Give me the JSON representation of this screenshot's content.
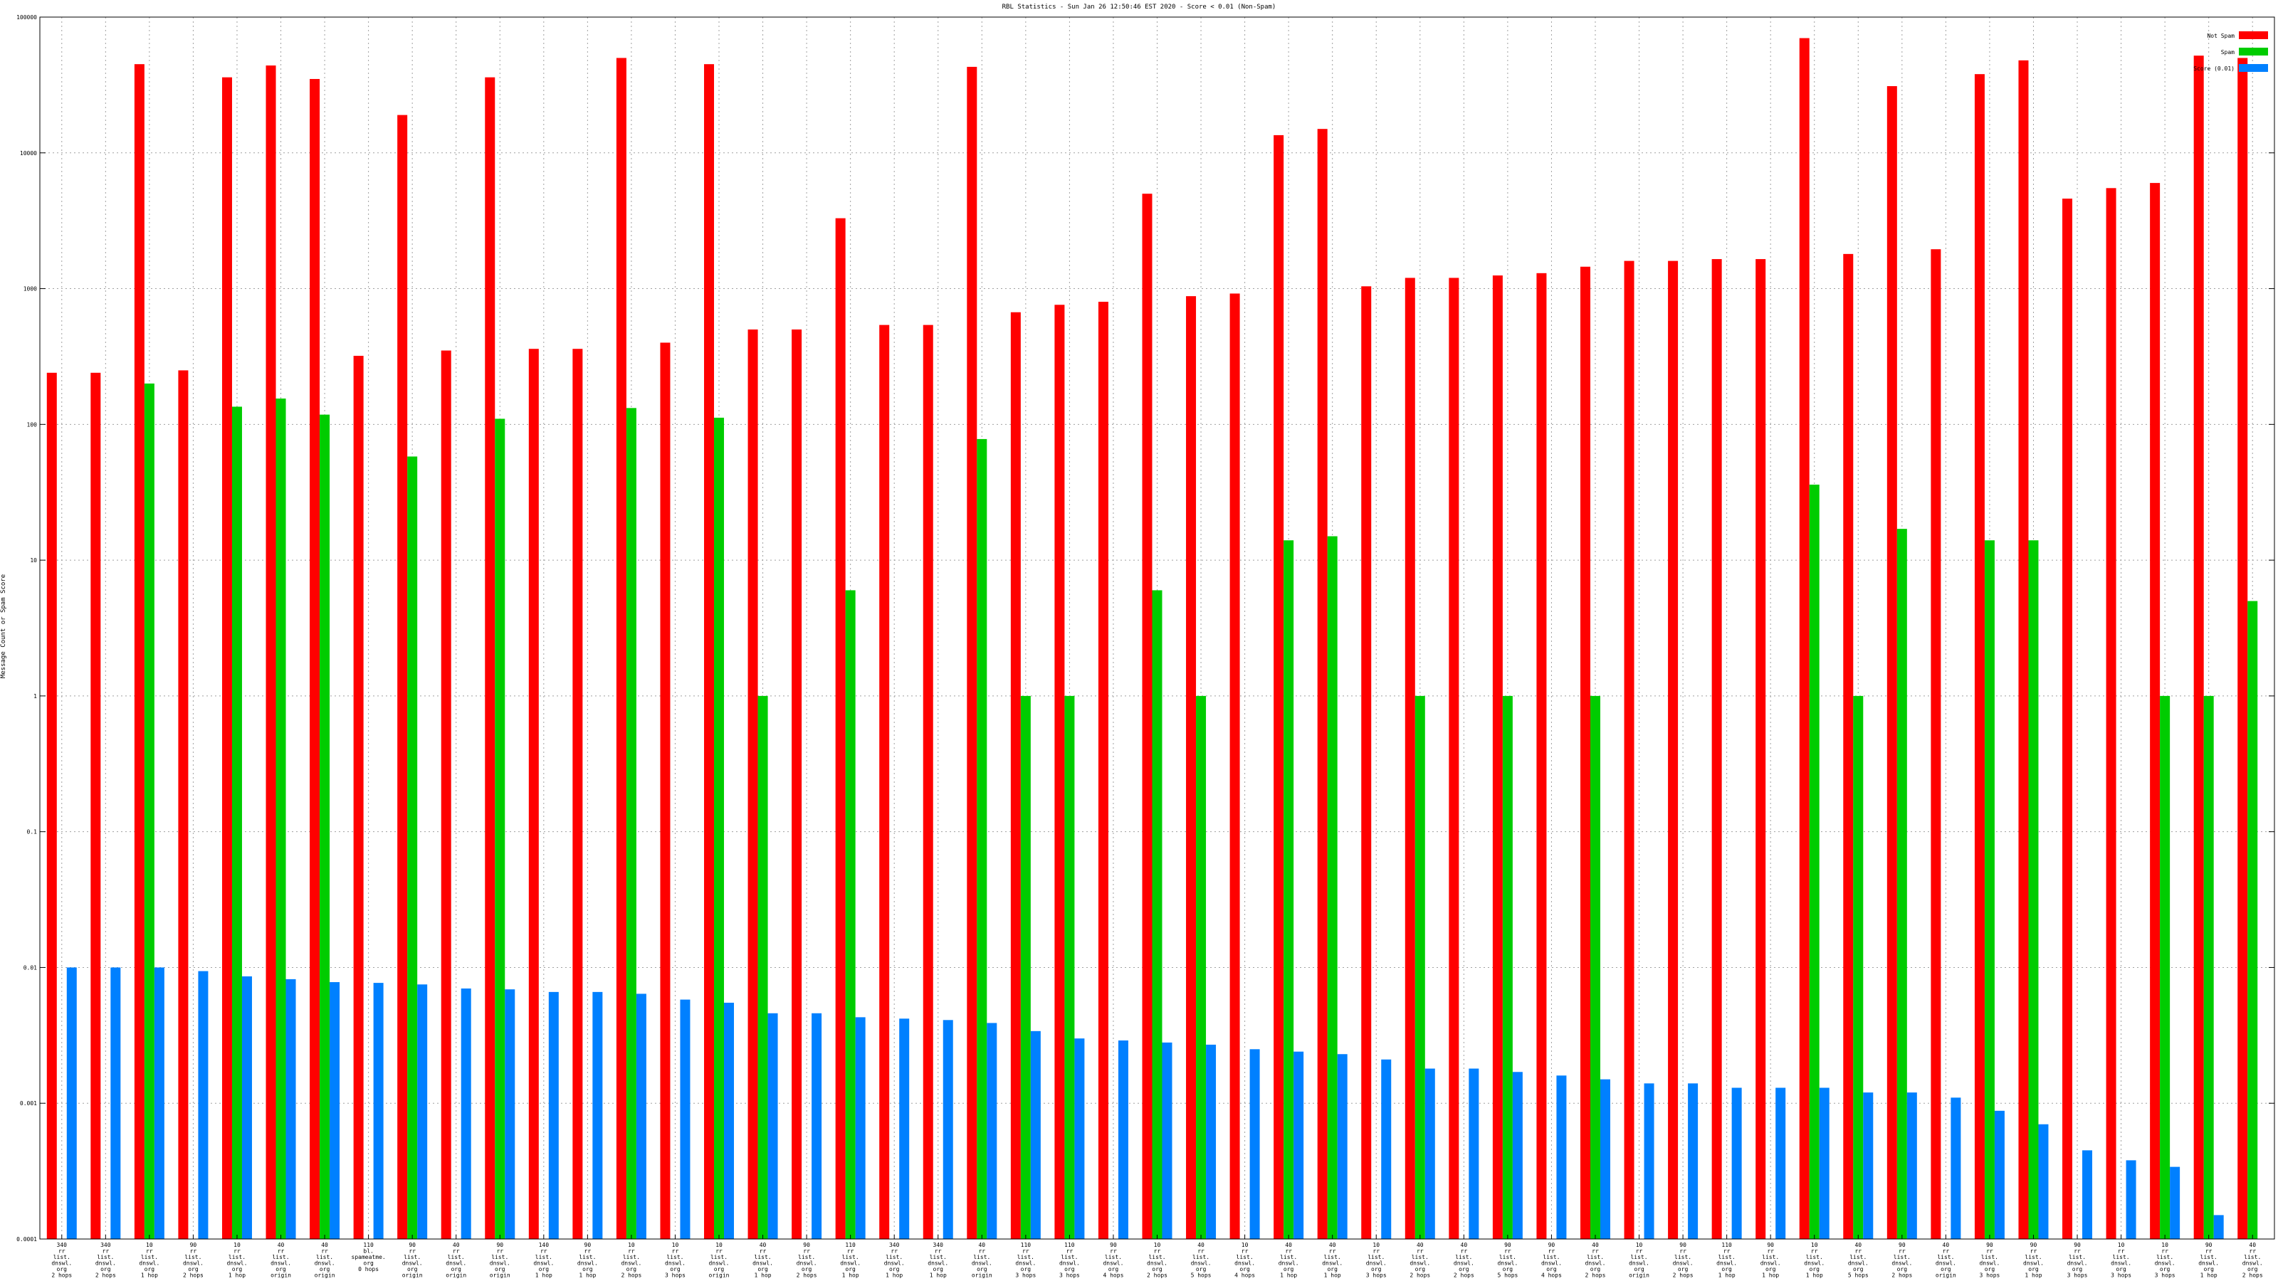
{
  "chart_data": {
    "type": "bar",
    "title": "RBL Statistics - Sun Jan 26 12:50:46 EST 2020 - Score < 0.01 (Non-Spam)",
    "ylabel": "Message Count or Spam Score",
    "yscale": "log",
    "ylim": [
      0.0001,
      100000
    ],
    "yticks": [
      "0.0001",
      "0.001",
      "0.01",
      "0.1",
      "1",
      "10",
      "100",
      "1000",
      "10000",
      "100000"
    ],
    "grid": true,
    "legend_position": "top-right",
    "categories": [
      [
        "340",
        "rr",
        "list.",
        "dnswl.",
        "org",
        "2 hops"
      ],
      [
        "340",
        "rr",
        "list.",
        "dnswl.",
        "org",
        "2 hops"
      ],
      [
        "10",
        "rr",
        "list.",
        "dnswl.",
        "org",
        "1 hop"
      ],
      [
        "90",
        "rr",
        "list.",
        "dnswl.",
        "org",
        "2 hops"
      ],
      [
        "10",
        "rr",
        "list.",
        "dnswl.",
        "org",
        "1 hop"
      ],
      [
        "40",
        "rr",
        "list.",
        "dnswl.",
        "org",
        "origin"
      ],
      [
        "40",
        "rr",
        "list.",
        "dnswl.",
        "org",
        "origin"
      ],
      [
        "110",
        "bl.",
        "spameatme.",
        "org",
        "0 hops"
      ],
      [
        "90",
        "rr",
        "list.",
        "dnswl.",
        "org",
        "origin"
      ],
      [
        "40",
        "rr",
        "list.",
        "dnswl.",
        "org",
        "origin"
      ],
      [
        "90",
        "rr",
        "list.",
        "dnswl.",
        "org",
        "origin"
      ],
      [
        "140",
        "rr",
        "list.",
        "dnswl.",
        "org",
        "1 hop"
      ],
      [
        "90",
        "rr",
        "list.",
        "dnswl.",
        "org",
        "1 hop"
      ],
      [
        "10",
        "rr",
        "list.",
        "dnswl.",
        "org",
        "2 hops"
      ],
      [
        "10",
        "rr",
        "list.",
        "dnswl.",
        "org",
        "3 hops"
      ],
      [
        "10",
        "rr",
        "list.",
        "dnswl.",
        "org",
        "origin"
      ],
      [
        "40",
        "rr",
        "list.",
        "dnswl.",
        "org",
        "1 hop"
      ],
      [
        "90",
        "rr",
        "list.",
        "dnswl.",
        "org",
        "2 hops"
      ],
      [
        "110",
        "rr",
        "list.",
        "dnswl.",
        "org",
        "1 hop"
      ],
      [
        "340",
        "rr",
        "list.",
        "dnswl.",
        "org",
        "1 hop"
      ],
      [
        "340",
        "rr",
        "list.",
        "dnswl.",
        "org",
        "1 hop"
      ],
      [
        "40",
        "rr",
        "list.",
        "dnswl.",
        "org",
        "origin"
      ],
      [
        "110",
        "rr",
        "list.",
        "dnswl.",
        "org",
        "3 hops"
      ],
      [
        "110",
        "rr",
        "list.",
        "dnswl.",
        "org",
        "3 hops"
      ],
      [
        "90",
        "rr",
        "list.",
        "dnswl.",
        "org",
        "4 hops"
      ],
      [
        "10",
        "rr",
        "list.",
        "dnswl.",
        "org",
        "2 hops"
      ],
      [
        "40",
        "rr",
        "list.",
        "dnswl.",
        "org",
        "5 hops"
      ],
      [
        "10",
        "rr",
        "list.",
        "dnswl.",
        "org",
        "4 hops"
      ],
      [
        "40",
        "rr",
        "list.",
        "dnswl.",
        "org",
        "1 hop"
      ],
      [
        "40",
        "rr",
        "list.",
        "dnswl.",
        "org",
        "1 hop"
      ],
      [
        "10",
        "rr",
        "list.",
        "dnswl.",
        "org",
        "3 hops"
      ],
      [
        "40",
        "rr",
        "list.",
        "dnswl.",
        "org",
        "2 hops"
      ],
      [
        "40",
        "rr",
        "list.",
        "dnswl.",
        "org",
        "2 hops"
      ],
      [
        "90",
        "rr",
        "list.",
        "dnswl.",
        "org",
        "5 hops"
      ],
      [
        "90",
        "rr",
        "list.",
        "dnswl.",
        "org",
        "4 hops"
      ],
      [
        "40",
        "rr",
        "list.",
        "dnswl.",
        "org",
        "2 hops"
      ],
      [
        "10",
        "rr",
        "list.",
        "dnswl.",
        "org",
        "origin"
      ],
      [
        "90",
        "rr",
        "list.",
        "dnswl.",
        "org",
        "2 hops"
      ],
      [
        "110",
        "rr",
        "list.",
        "dnswl.",
        "org",
        "1 hop"
      ],
      [
        "90",
        "rr",
        "list.",
        "dnswl.",
        "org",
        "1 hop"
      ],
      [
        "10",
        "rr",
        "list.",
        "dnswl.",
        "org",
        "1 hop"
      ],
      [
        "40",
        "rr",
        "list.",
        "dnswl.",
        "org",
        "5 hops"
      ],
      [
        "90",
        "rr",
        "list.",
        "dnswl.",
        "org",
        "2 hops"
      ],
      [
        "40",
        "rr",
        "list.",
        "dnswl.",
        "org",
        "origin"
      ],
      [
        "90",
        "rr",
        "list.",
        "dnswl.",
        "org",
        "3 hops"
      ],
      [
        "90",
        "rr",
        "list.",
        "dnswl.",
        "org",
        "1 hop"
      ],
      [
        "90",
        "rr",
        "list.",
        "dnswl.",
        "org",
        "3 hops"
      ],
      [
        "10",
        "rr",
        "list.",
        "dnswl.",
        "org",
        "3 hops"
      ],
      [
        "10",
        "rr",
        "list.",
        "dnswl.",
        "org",
        "3 hops"
      ],
      [
        "90",
        "rr",
        "list.",
        "dnswl.",
        "org",
        "1 hop"
      ],
      [
        "40",
        "rr",
        "list.",
        "dnswl.",
        "org",
        "2 hops"
      ]
    ],
    "series": [
      {
        "name": "Not Spam",
        "color": "#ff0000",
        "values": [
          240,
          240,
          45000,
          250,
          36000,
          44000,
          35000,
          320,
          19000,
          350,
          36000,
          360,
          360,
          50000,
          400,
          45000,
          500,
          500,
          3300,
          540,
          540,
          43000,
          670,
          760,
          800,
          5000,
          880,
          920,
          13500,
          15000,
          1040,
          1200,
          1200,
          1250,
          1300,
          1450,
          1600,
          1600,
          1650,
          1650,
          70000,
          1800,
          31000,
          1950,
          38000,
          48000,
          4600,
          5500,
          6000,
          52000,
          50000
        ]
      },
      {
        "name": "Spam",
        "color": "#00cc00",
        "values": [
          null,
          null,
          200,
          null,
          135,
          155,
          118,
          null,
          58,
          null,
          110,
          null,
          null,
          132,
          null,
          112,
          1,
          null,
          6,
          null,
          null,
          78,
          1,
          1,
          null,
          6,
          1,
          null,
          14,
          15,
          null,
          1,
          null,
          1,
          null,
          1,
          null,
          null,
          null,
          null,
          36,
          1,
          17,
          null,
          14,
          14,
          null,
          null,
          1,
          1,
          5
        ]
      },
      {
        "name": "Score (0.01)",
        "color": "#0080ff",
        "values": [
          0.01,
          0.01,
          0.01,
          0.0094,
          0.0086,
          0.0082,
          0.0078,
          0.0077,
          0.0075,
          0.007,
          0.0069,
          0.0066,
          0.0066,
          0.0064,
          0.0058,
          0.0055,
          0.0046,
          0.0046,
          0.0043,
          0.0042,
          0.0041,
          0.0039,
          0.0034,
          0.003,
          0.0029,
          0.0028,
          0.0027,
          0.0025,
          0.0024,
          0.0023,
          0.0021,
          0.0018,
          0.0018,
          0.0017,
          0.0016,
          0.0015,
          0.0014,
          0.0014,
          0.0013,
          0.0013,
          0.0013,
          0.0012,
          0.0012,
          0.0011,
          0.00088,
          0.0007,
          0.00045,
          0.00038,
          0.00034,
          0.00015,
          null
        ]
      }
    ]
  }
}
